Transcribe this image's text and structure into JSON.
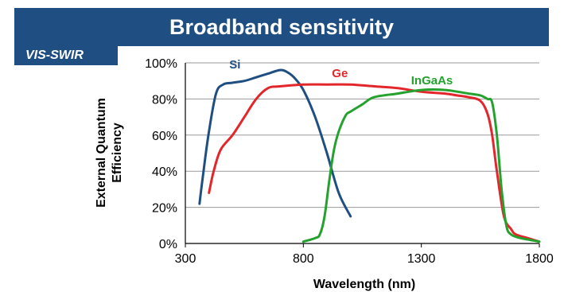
{
  "header": {
    "title": "Broadband sensitivity",
    "tag": "VIS-SWIR"
  },
  "chart_data": {
    "type": "line",
    "xlabel": "Wavelength (nm)",
    "ylabel_lines": [
      "External Quantum",
      "Efficiency"
    ],
    "xlim": [
      300,
      1800
    ],
    "ylim": [
      0,
      100
    ],
    "xticks": [
      300,
      800,
      1300,
      1800
    ],
    "yticks": [
      0,
      20,
      40,
      60,
      80,
      100
    ],
    "ytick_suffix": "%",
    "grid": true,
    "legend": "inline",
    "series": [
      {
        "name": "Si",
        "color": "#1f4f82",
        "x": [
          360,
          375,
          400,
          430,
          460,
          500,
          550,
          600,
          650,
          700,
          730,
          760,
          800,
          850,
          900,
          950,
          1000
        ],
        "y": [
          22,
          38,
          62,
          83,
          88,
          89,
          90,
          92,
          94,
          96,
          95,
          92,
          85,
          70,
          50,
          28,
          15
        ]
      },
      {
        "name": "Ge",
        "color": "#e3262b",
        "x": [
          400,
          420,
          450,
          500,
          550,
          600,
          650,
          700,
          800,
          900,
          1000,
          1100,
          1200,
          1300,
          1400,
          1450,
          1500,
          1550,
          1580,
          1600,
          1620,
          1650,
          1680,
          1700,
          1750,
          1800
        ],
        "y": [
          28,
          40,
          52,
          60,
          70,
          80,
          86,
          87,
          88,
          88,
          88,
          87,
          86,
          84,
          83,
          82,
          81,
          79,
          72,
          60,
          40,
          15,
          8,
          5,
          3,
          1
        ]
      },
      {
        "name": "InGaAs",
        "color": "#25a12e",
        "x": [
          800,
          850,
          870,
          890,
          910,
          930,
          950,
          980,
          1000,
          1050,
          1100,
          1200,
          1300,
          1400,
          1500,
          1550,
          1580,
          1600,
          1620,
          1640,
          1660,
          1680,
          1720,
          1760,
          1800
        ],
        "y": [
          1,
          3,
          5,
          15,
          35,
          52,
          62,
          71,
          73,
          77,
          81,
          83,
          85,
          85,
          83,
          82,
          80,
          78,
          60,
          30,
          10,
          5,
          3,
          2,
          1
        ]
      }
    ]
  }
}
